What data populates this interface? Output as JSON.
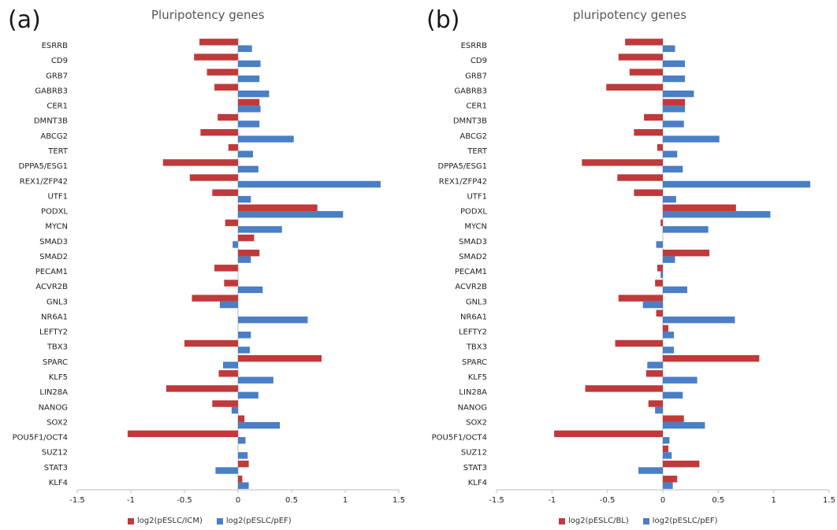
{
  "panels": [
    {
      "letter": "(a)",
      "title": "Pluripotency genes"
    },
    {
      "letter": "(b)",
      "title": "pluripotency genes"
    }
  ],
  "colors": {
    "red": "#c0393b",
    "blue": "#4a7ec5"
  },
  "chart_data": [
    {
      "type": "bar",
      "orientation": "horizontal",
      "title": "Pluripotency genes",
      "categories": [
        "ESRRB",
        "CD9",
        "GRB7",
        "GABRB3",
        "CER1",
        "DMNT3B",
        "ABCG2",
        "TERT",
        "DPPA5/ESG1",
        "REX1/ZFP42",
        "UTF1",
        "PODXL",
        "MYCN",
        "SMAD3",
        "SMAD2",
        "PECAM1",
        "ACVR2B",
        "GNL3",
        "NR6A1",
        "LEFTY2",
        "TBX3",
        "SPARC",
        "KLF5",
        "LIN28A",
        "NANOG",
        "SOX2",
        "POU5F1/OCT4",
        "SUZ12",
        "STAT3",
        "KLF4"
      ],
      "series": [
        {
          "name": "log2(pESLC/ICM)",
          "color": "#c0393b",
          "values": [
            -0.36,
            -0.41,
            -0.29,
            -0.22,
            0.2,
            -0.19,
            -0.35,
            -0.09,
            -0.7,
            -0.45,
            -0.24,
            0.74,
            -0.12,
            0.15,
            0.2,
            -0.22,
            -0.13,
            -0.43,
            0.0,
            0.0,
            -0.5,
            0.78,
            -0.18,
            -0.67,
            -0.24,
            0.06,
            -1.03,
            0.0,
            0.1,
            0.04
          ]
        },
        {
          "name": "log2(pESLC/pEF)",
          "color": "#4a7ec5",
          "values": [
            0.13,
            0.21,
            0.2,
            0.29,
            0.21,
            0.2,
            0.52,
            0.14,
            0.19,
            1.33,
            0.12,
            0.98,
            0.41,
            -0.05,
            0.12,
            0.0,
            0.23,
            -0.17,
            0.65,
            0.12,
            0.11,
            -0.14,
            0.33,
            0.19,
            -0.06,
            0.39,
            0.07,
            0.09,
            -0.21,
            0.1
          ]
        }
      ],
      "xlim": [
        -1.5,
        1.5
      ],
      "xticks": [
        "-1.5",
        "-1",
        "-0.5",
        "0",
        "0.5",
        "1",
        "1.5"
      ],
      "legend": "bottom"
    },
    {
      "type": "bar",
      "orientation": "horizontal",
      "title": "pluripotency genes",
      "categories": [
        "ESRRB",
        "CD9",
        "GRB7",
        "GABRB3",
        "CER1",
        "DMNT3B",
        "ABCG2",
        "TERT",
        "DPPA5/ESG1",
        "REX1/ZFP42",
        "UTF1",
        "PODXL",
        "MYCN",
        "SMAD3",
        "SMAD2",
        "PECAM1",
        "ACVR2B",
        "GNL3",
        "NR6A1",
        "LEFTY2",
        "TBX3",
        "SPARC",
        "KLF5",
        "LIN28A",
        "NANOG",
        "SOX2",
        "POU5F1/OCT4",
        "SUZ12",
        "STAT3",
        "KLF4"
      ],
      "series": [
        {
          "name": "log2(pESLC/BL)",
          "color": "#c0393b",
          "values": [
            -0.34,
            -0.4,
            -0.3,
            -0.51,
            0.2,
            -0.17,
            -0.26,
            -0.05,
            -0.73,
            -0.41,
            -0.26,
            0.66,
            -0.02,
            0.0,
            0.42,
            -0.05,
            -0.07,
            -0.4,
            -0.06,
            0.05,
            -0.43,
            0.87,
            -0.15,
            -0.7,
            -0.13,
            0.19,
            -0.98,
            0.05,
            0.33,
            0.13
          ]
        },
        {
          "name": "log2(pESLC/pEF)",
          "color": "#4a7ec5",
          "values": [
            0.11,
            0.2,
            0.2,
            0.28,
            0.2,
            0.19,
            0.51,
            0.13,
            0.18,
            1.33,
            0.12,
            0.97,
            0.41,
            -0.06,
            0.11,
            -0.02,
            0.22,
            -0.18,
            0.65,
            0.1,
            0.1,
            -0.14,
            0.31,
            0.18,
            -0.07,
            0.38,
            0.06,
            0.08,
            -0.22,
            0.09
          ]
        }
      ],
      "xlim": [
        -1.5,
        1.5
      ],
      "xticks": [
        "-1.5",
        "-1",
        "-0.5",
        "0",
        "0.5",
        "1",
        "1.5"
      ],
      "legend": "bottom"
    }
  ]
}
